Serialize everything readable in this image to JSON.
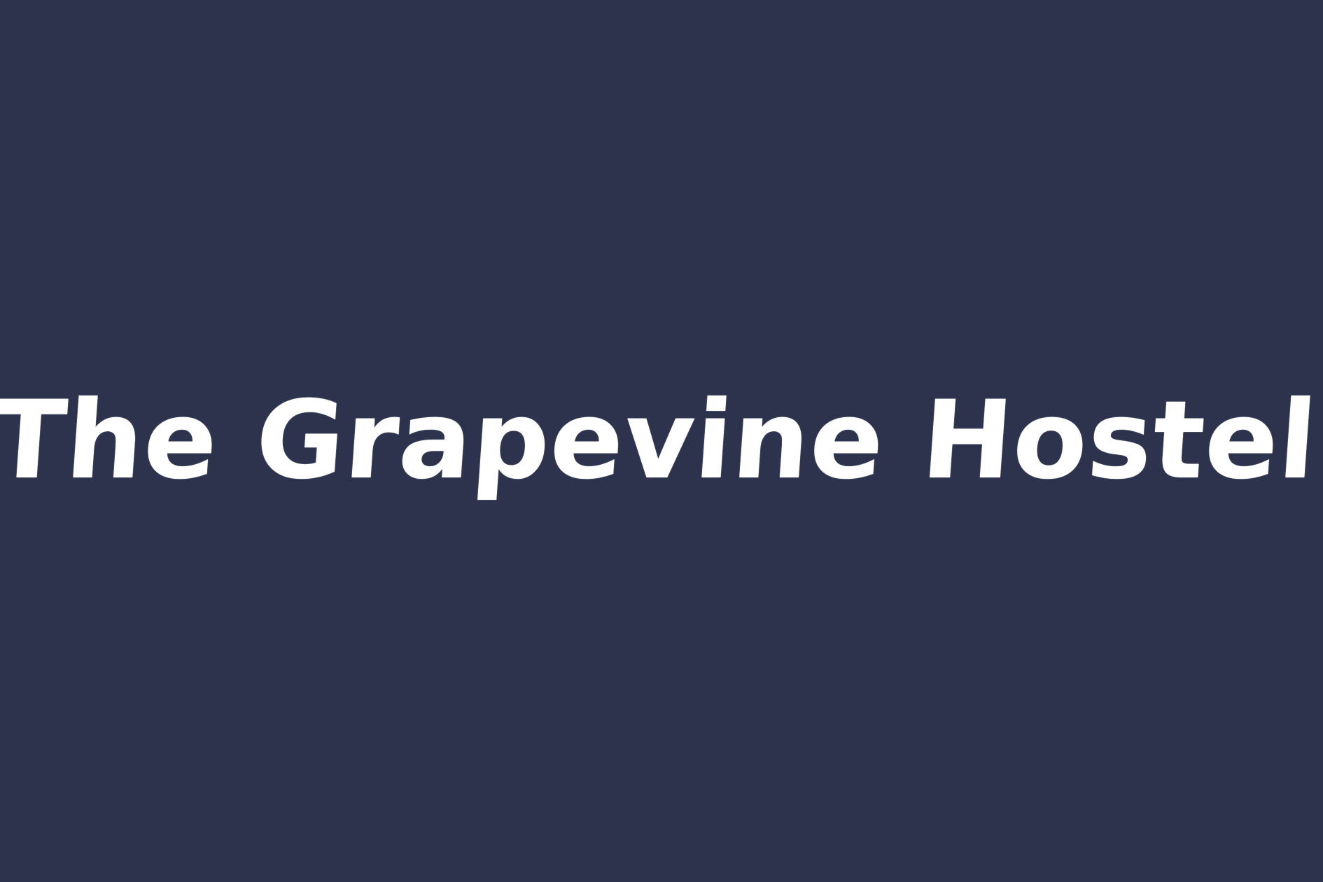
{
  "background_color": "#2d334d",
  "text_color": "#ffffff",
  "title": "The Grapevine Hostel"
}
